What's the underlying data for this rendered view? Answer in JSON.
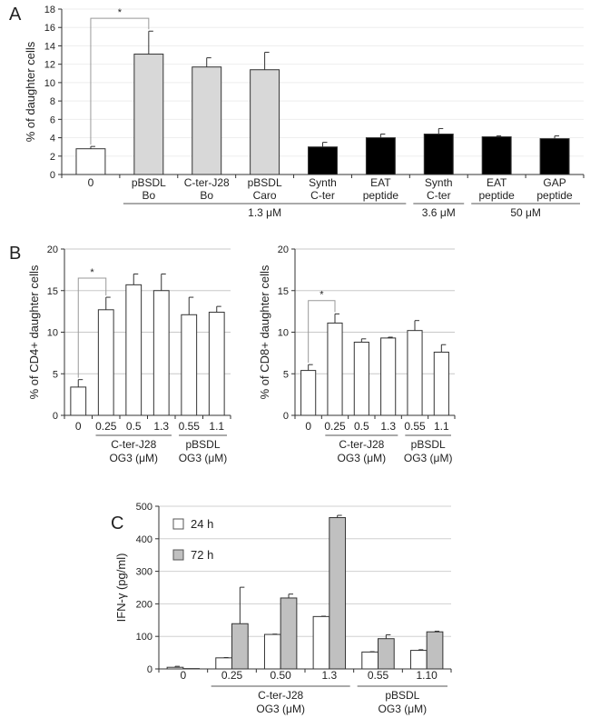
{
  "chart_data": [
    {
      "panel": "A",
      "type": "bar",
      "ylabel": "% of daughter cells",
      "ylim": [
        0,
        18
      ],
      "yticks": [
        0,
        2,
        4,
        6,
        8,
        10,
        12,
        14,
        16,
        18
      ],
      "grid": true,
      "categories": [
        [
          "0"
        ],
        [
          "pBSDL",
          "Bo"
        ],
        [
          "C-ter-J28",
          "Bo"
        ],
        [
          "pBSDL",
          "Caro"
        ],
        [
          "Synth",
          "C-ter"
        ],
        [
          "EAT",
          "peptide"
        ],
        [
          "Synth",
          "C-ter"
        ],
        [
          "EAT",
          "peptide"
        ],
        [
          "GAP",
          "peptide"
        ]
      ],
      "series": [
        {
          "values": [
            2.8,
            13.1,
            11.7,
            11.4,
            3.0,
            4.0,
            4.4,
            4.1,
            3.9
          ],
          "errors": [
            0.25,
            2.5,
            1.0,
            1.9,
            0.5,
            0.4,
            0.6,
            0.1,
            0.3
          ],
          "colors": [
            "#ffffff",
            "#d8d8d8",
            "#d8d8d8",
            "#d8d8d8",
            "#000000",
            "#000000",
            "#000000",
            "#000000",
            "#000000"
          ]
        }
      ],
      "groups": [
        {
          "label": [
            "1.3 μM"
          ],
          "from": 1,
          "to": 5
        },
        {
          "label": [
            "3.6 μM"
          ],
          "from": 6,
          "to": 6
        },
        {
          "label": [
            "50 μM"
          ],
          "from": 7,
          "to": 8
        }
      ],
      "significance": [
        {
          "from": 0,
          "to": 1,
          "label": "*"
        }
      ]
    },
    {
      "panel": "B",
      "type": "bar",
      "ylabel": "% of CD4+ daughter cells",
      "ylim": [
        0,
        20
      ],
      "yticks": [
        0,
        5,
        10,
        15,
        20
      ],
      "grid": true,
      "categories": [
        [
          "0"
        ],
        [
          "0.25"
        ],
        [
          "0.5"
        ],
        [
          "1.3"
        ],
        [
          "0.55"
        ],
        [
          "1.1"
        ]
      ],
      "series": [
        {
          "values": [
            3.4,
            12.7,
            15.7,
            15.0,
            12.1,
            12.4
          ],
          "errors": [
            0.9,
            1.5,
            1.3,
            2.0,
            2.1,
            0.7
          ],
          "colors": [
            "#ffffff",
            "#ffffff",
            "#ffffff",
            "#ffffff",
            "#ffffff",
            "#ffffff"
          ]
        }
      ],
      "groups": [
        {
          "label": [
            "C-ter-J28",
            "OG3 (μM)"
          ],
          "from": 1,
          "to": 3
        },
        {
          "label": [
            "pBSDL",
            "OG3 (μM)"
          ],
          "from": 4,
          "to": 5
        }
      ],
      "significance": [
        {
          "from": 0,
          "to": 1,
          "label": "*"
        }
      ]
    },
    {
      "type": "bar",
      "ylabel": "% of CD8+ daughter cells",
      "ylim": [
        0,
        20
      ],
      "yticks": [
        0,
        5,
        10,
        15,
        20
      ],
      "grid": true,
      "categories": [
        [
          "0"
        ],
        [
          "0.25"
        ],
        [
          "0.5"
        ],
        [
          "1.3"
        ],
        [
          "0.55"
        ],
        [
          "1.1"
        ]
      ],
      "series": [
        {
          "values": [
            5.4,
            11.1,
            8.8,
            9.3,
            10.2,
            7.6
          ],
          "errors": [
            0.7,
            1.1,
            0.4,
            0.1,
            1.2,
            0.9
          ],
          "colors": [
            "#ffffff",
            "#ffffff",
            "#ffffff",
            "#ffffff",
            "#ffffff",
            "#ffffff"
          ]
        }
      ],
      "groups": [
        {
          "label": [
            "C-ter-J28",
            "OG3 (μM)"
          ],
          "from": 1,
          "to": 3
        },
        {
          "label": [
            "pBSDL",
            "OG3 (μM)"
          ],
          "from": 4,
          "to": 5
        }
      ],
      "significance": [
        {
          "from": 0,
          "to": 1,
          "label": "*"
        }
      ]
    },
    {
      "panel": "C",
      "type": "bar",
      "ylabel": "IFN-γ (pg/ml)",
      "ylim": [
        0,
        500
      ],
      "yticks": [
        0,
        100,
        200,
        300,
        400,
        500
      ],
      "grid": true,
      "legend": "top-left",
      "categories": [
        [
          "0"
        ],
        [
          "0.25"
        ],
        [
          "0.50"
        ],
        [
          "1.3"
        ],
        [
          "0.55"
        ],
        [
          "1.10"
        ]
      ],
      "series": [
        {
          "name": "24 h",
          "color": "#ffffff",
          "values": [
            5,
            34,
            106,
            161,
            52,
            57
          ],
          "errors": [
            3,
            1,
            1,
            1,
            1,
            2
          ]
        },
        {
          "name": "72 h",
          "color": "#c0c0c0",
          "values": [
            1,
            139,
            218,
            465,
            93,
            114
          ],
          "errors": [
            0,
            112,
            12,
            7,
            12,
            2
          ]
        }
      ],
      "groups": [
        {
          "label": [
            "C-ter-J28",
            "OG3 (μM)"
          ],
          "from": 1,
          "to": 3
        },
        {
          "label": [
            "pBSDL",
            "OG3 (μM)"
          ],
          "from": 4,
          "to": 5
        }
      ]
    }
  ]
}
